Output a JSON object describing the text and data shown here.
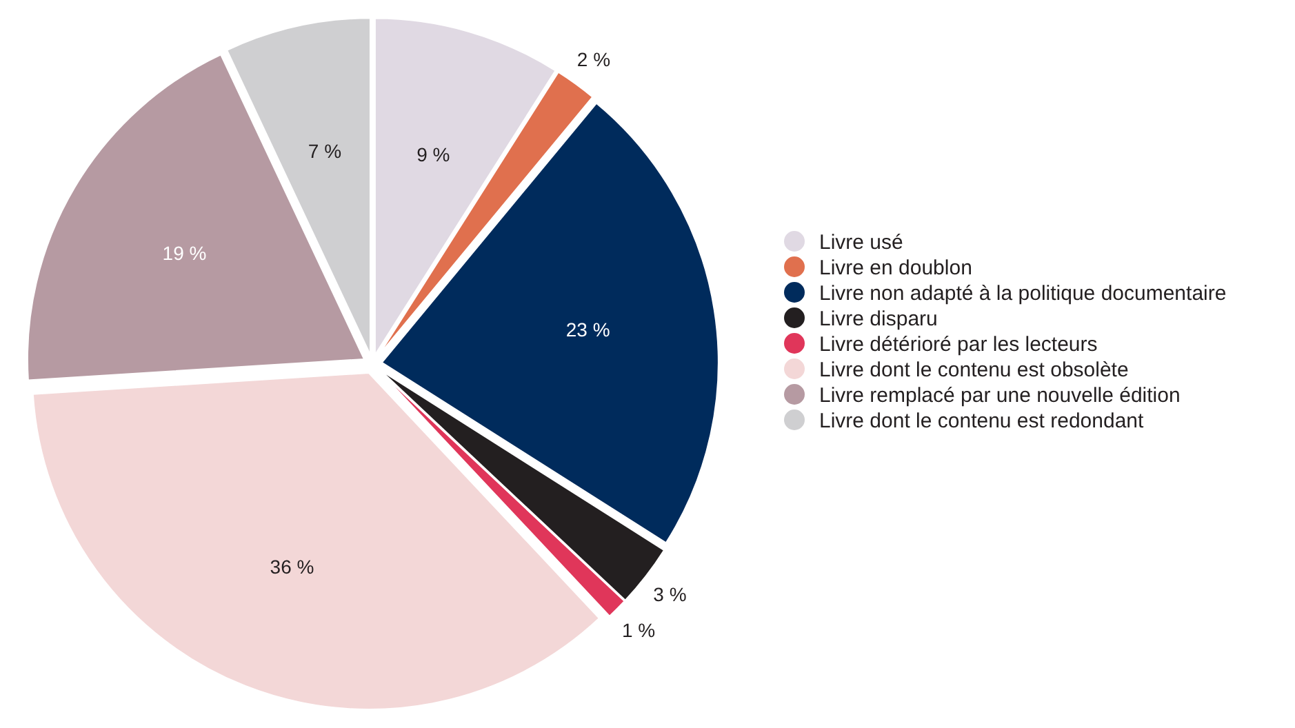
{
  "chart_data": {
    "type": "pie",
    "categories": [
      "Livre usé",
      "Livre en doublon",
      "Livre non adapté à la politique documentaire",
      "Livre disparu",
      "Livre détérioré par les lecteurs",
      "Livre dont le contenu est obsolète",
      "Livre remplacé par une nouvelle édition",
      "Livre dont le contenu est redondant"
    ],
    "values": [
      9,
      2,
      23,
      3,
      1,
      36,
      19,
      7
    ],
    "value_labels": [
      "9 %",
      "2 %",
      "23 %",
      "3 %",
      "1 %",
      "36 %",
      "19 %",
      "7 %"
    ],
    "colors": [
      "#e0d9e3",
      "#e0704e",
      "#002b5c",
      "#231f20",
      "#e0365a",
      "#f3d7d7",
      "#b69aa2",
      "#cfcfd1"
    ],
    "legend": "right"
  }
}
